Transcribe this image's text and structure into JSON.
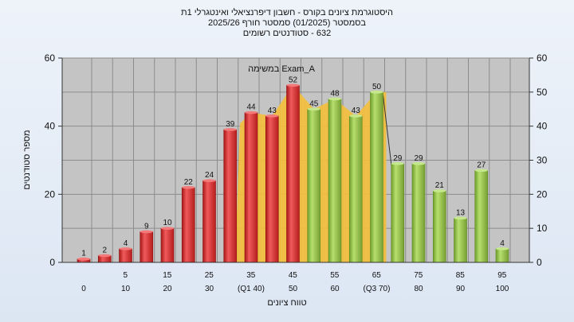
{
  "chart_data": {
    "type": "bar",
    "title_lines": [
      "היסטוגרמת ציונים בקורס - חשבון דיפרנציאלי ואינטגרלי 1ת",
      "בסמסטר  (01/2025)  סמסטר חורף 2025/26",
      "632 - סטודנטים רשומים"
    ],
    "xlabel": "טווח ציונים",
    "ylabel": "מספר סטודנטים",
    "ylim": [
      0,
      60
    ],
    "yticks": [
      0,
      20,
      40,
      60
    ],
    "yticks_right": [
      0,
      10,
      20,
      30,
      40,
      50,
      60
    ],
    "legend_label": "Exam_A במשימה",
    "bin_edges": [
      0,
      5,
      10,
      15,
      20,
      25,
      30,
      35,
      40,
      45,
      50,
      55,
      60,
      65,
      70,
      75,
      80,
      85,
      90,
      95,
      100
    ],
    "edge_labels_upper": [
      "5",
      "15",
      "25",
      "35",
      "45",
      "55",
      "65",
      "75",
      "85",
      "95"
    ],
    "edge_labels_lower": [
      "0",
      "10",
      "20",
      "30",
      "(Q1 40)",
      "50",
      "60",
      "(Q3 70)",
      "80",
      "90",
      "100"
    ],
    "values": [
      1,
      2,
      4,
      9,
      10,
      22,
      24,
      39,
      44,
      43,
      52,
      45,
      48,
      43,
      50,
      29,
      29,
      21,
      13,
      27,
      4
    ],
    "value_labels": [
      "1",
      "2",
      "4",
      "9",
      "10",
      "22",
      "24",
      "39",
      "44",
      "43",
      "52",
      "45",
      "48",
      "43",
      "50",
      "29",
      "29",
      "21",
      "13",
      "27",
      "4"
    ],
    "bar_colors": [
      "red",
      "red",
      "red",
      "red",
      "red",
      "red",
      "red",
      "red",
      "red",
      "red",
      "red",
      "green",
      "green",
      "green",
      "green",
      "green",
      "green",
      "green",
      "green",
      "green",
      "green"
    ],
    "iqr_band": {
      "from_bin": 8,
      "to_bin": 14,
      "color": "#f5bf3a"
    },
    "grid": true,
    "colors": {
      "red": "#e53b3b",
      "green": "#9ccc52",
      "plot_bg": "#c4c4c4",
      "grid": "#8c8c8c",
      "band": "#f5bf3a"
    }
  }
}
